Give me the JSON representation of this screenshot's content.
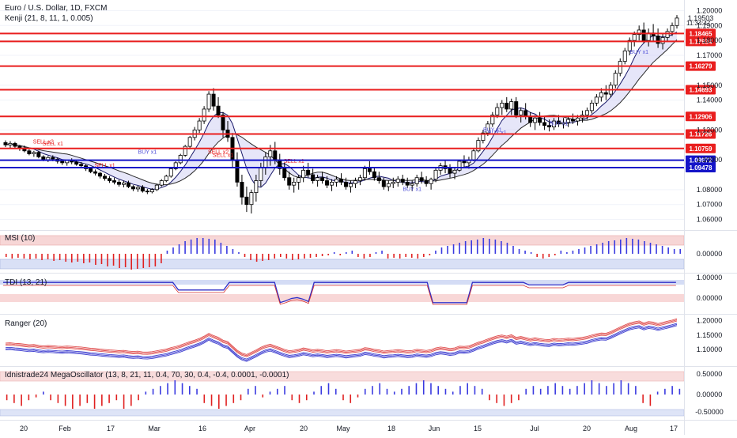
{
  "chart_data": [
    {
      "type": "candlestick",
      "title": "Euro / U.S. Dollar, 1D, FXCM",
      "subtitle": "Kenji (21, 8, 11, 1, 0.005)",
      "y_ticks": [
        "1.20000",
        "1.19000",
        "1.18000",
        "1.17000",
        "1.15000",
        "1.14000",
        "1.12000",
        "1.10000",
        "1.08000",
        "1.07000",
        "1.06000"
      ],
      "ylim": [
        1.055,
        1.205
      ],
      "last_price": "1.19503",
      "countdown": "11:34:47",
      "horizontal_levels": [
        {
          "value": "1.18465",
          "color": "#e91e1e"
        },
        {
          "value": "1.17934",
          "color": "#e91e1e"
        },
        {
          "value": "1.16279",
          "color": "#e91e1e"
        },
        {
          "value": "1.14693",
          "color": "#e91e1e"
        },
        {
          "value": "1.12906",
          "color": "#e91e1e"
        },
        {
          "value": "1.11726",
          "color": "#e91e1e"
        },
        {
          "value": "1.10759",
          "color": "#e91e1e"
        },
        {
          "value": "1.09972",
          "color": "#1414c8"
        },
        {
          "value": "1.09478",
          "color": "#1414c8"
        }
      ],
      "signal_labels": [
        {
          "text": "SELL x2",
          "color": "#e91e1e"
        },
        {
          "text": "SELL x1",
          "color": "#e91e1e"
        },
        {
          "text": "SELL x1",
          "color": "#e91e1e"
        },
        {
          "text": "BUY x1",
          "color": "#5050d8"
        },
        {
          "text": "SELL x2",
          "color": "#e91e1e"
        },
        {
          "text": "SELL x1",
          "color": "#e91e1e"
        },
        {
          "text": "SELL x1",
          "color": "#e91e1e"
        },
        {
          "text": "BUY x1",
          "color": "#5050d8"
        },
        {
          "text": "BUY x1",
          "color": "#5050d8"
        },
        {
          "text": "BUY x1",
          "color": "#5050d8"
        },
        {
          "text": "BUY x1",
          "color": "#5050d8"
        },
        {
          "text": "BUY x1",
          "color": "#5050d8"
        }
      ],
      "candles": [
        [
          1.1115,
          1.113,
          1.1085,
          1.11
        ],
        [
          1.11,
          1.1125,
          1.108,
          1.111
        ],
        [
          1.111,
          1.112,
          1.1075,
          1.109
        ],
        [
          1.109,
          1.11,
          1.106,
          1.108
        ],
        [
          1.108,
          1.1095,
          1.105,
          1.106
        ],
        [
          1.106,
          1.107,
          1.103,
          1.104
        ],
        [
          1.104,
          1.106,
          1.102,
          1.105
        ],
        [
          1.105,
          1.106,
          1.101,
          1.102
        ],
        [
          1.102,
          1.103,
          1.099,
          1.1
        ],
        [
          1.1,
          1.1025,
          1.0985,
          1.1015
        ],
        [
          1.1015,
          1.103,
          1.099,
          1.1005
        ],
        [
          1.1005,
          1.1015,
          1.0975,
          1.099
        ],
        [
          1.099,
          1.1,
          1.0965,
          1.098
        ],
        [
          1.098,
          1.1,
          1.096,
          1.0995
        ],
        [
          1.0995,
          1.101,
          1.097,
          1.0985
        ],
        [
          1.0985,
          1.1,
          1.096,
          1.097
        ],
        [
          1.097,
          1.0985,
          1.0945,
          1.096
        ],
        [
          1.096,
          1.097,
          1.0925,
          1.094
        ],
        [
          1.094,
          1.095,
          1.091,
          1.092
        ],
        [
          1.092,
          1.0935,
          1.0895,
          1.091
        ],
        [
          1.091,
          1.092,
          1.0875,
          1.089
        ],
        [
          1.089,
          1.0905,
          1.086,
          1.0875
        ],
        [
          1.0875,
          1.089,
          1.0845,
          1.086
        ],
        [
          1.086,
          1.088,
          1.0835,
          1.085
        ],
        [
          1.085,
          1.0865,
          1.082,
          1.0835
        ],
        [
          1.0835,
          1.086,
          1.0815,
          1.0845
        ],
        [
          1.0845,
          1.086,
          1.081,
          1.082
        ],
        [
          1.082,
          1.083,
          1.079,
          1.0805
        ],
        [
          1.0805,
          1.0825,
          1.0785,
          1.0815
        ],
        [
          1.0815,
          1.083,
          1.078,
          1.079
        ],
        [
          1.079,
          1.0805,
          1.077,
          1.0785
        ],
        [
          1.0785,
          1.081,
          1.0775,
          1.08
        ],
        [
          1.08,
          1.084,
          1.079,
          1.083
        ],
        [
          1.083,
          1.087,
          1.082,
          1.086
        ],
        [
          1.086,
          1.09,
          1.085,
          1.089
        ],
        [
          1.089,
          1.095,
          1.088,
          1.094
        ],
        [
          1.094,
          1.099,
          1.093,
          1.098
        ],
        [
          1.098,
          1.104,
          1.097,
          1.103
        ],
        [
          1.103,
          1.11,
          1.102,
          1.109
        ],
        [
          1.109,
          1.116,
          1.107,
          1.115
        ],
        [
          1.115,
          1.122,
          1.113,
          1.12
        ],
        [
          1.12,
          1.128,
          1.118,
          1.126
        ],
        [
          1.126,
          1.136,
          1.124,
          1.134
        ],
        [
          1.134,
          1.146,
          1.132,
          1.144
        ],
        [
          1.144,
          1.148,
          1.133,
          1.136
        ],
        [
          1.136,
          1.142,
          1.128,
          1.13
        ],
        [
          1.13,
          1.132,
          1.115,
          1.12
        ],
        [
          1.12,
          1.126,
          1.112,
          1.115
        ],
        [
          1.115,
          1.118,
          1.095,
          1.1
        ],
        [
          1.1,
          1.105,
          1.082,
          1.085
        ],
        [
          1.085,
          1.09,
          1.07,
          1.075
        ],
        [
          1.075,
          1.082,
          1.065,
          1.07
        ],
        [
          1.07,
          1.08,
          1.064,
          1.078
        ],
        [
          1.078,
          1.09,
          1.072,
          1.086
        ],
        [
          1.086,
          1.098,
          1.082,
          1.095
        ],
        [
          1.095,
          1.105,
          1.09,
          1.102
        ],
        [
          1.102,
          1.11,
          1.096,
          1.106
        ],
        [
          1.106,
          1.112,
          1.097,
          1.1
        ],
        [
          1.1,
          1.104,
          1.09,
          1.094
        ],
        [
          1.094,
          1.098,
          1.086,
          1.088
        ],
        [
          1.088,
          1.092,
          1.08,
          1.083
        ],
        [
          1.083,
          1.088,
          1.078,
          1.085
        ],
        [
          1.085,
          1.09,
          1.08,
          1.088
        ],
        [
          1.088,
          1.096,
          1.085,
          1.093
        ],
        [
          1.093,
          1.098,
          1.088,
          1.09
        ],
        [
          1.09,
          1.094,
          1.084,
          1.086
        ],
        [
          1.086,
          1.09,
          1.082,
          1.088
        ],
        [
          1.088,
          1.092,
          1.084,
          1.086
        ],
        [
          1.086,
          1.089,
          1.081,
          1.083
        ],
        [
          1.083,
          1.087,
          1.079,
          1.085
        ],
        [
          1.085,
          1.089,
          1.082,
          1.087
        ],
        [
          1.087,
          1.091,
          1.083,
          1.085
        ],
        [
          1.085,
          1.088,
          1.08,
          1.082
        ],
        [
          1.082,
          1.086,
          1.078,
          1.084
        ],
        [
          1.084,
          1.088,
          1.081,
          1.086
        ],
        [
          1.086,
          1.09,
          1.083,
          1.088
        ],
        [
          1.088,
          1.096,
          1.086,
          1.094
        ],
        [
          1.094,
          1.099,
          1.09,
          1.092
        ],
        [
          1.092,
          1.095,
          1.086,
          1.088
        ],
        [
          1.088,
          1.092,
          1.084,
          1.086
        ],
        [
          1.086,
          1.088,
          1.08,
          1.082
        ],
        [
          1.082,
          1.086,
          1.079,
          1.084
        ],
        [
          1.084,
          1.088,
          1.081,
          1.085
        ],
        [
          1.085,
          1.089,
          1.082,
          1.087
        ],
        [
          1.087,
          1.09,
          1.083,
          1.085
        ],
        [
          1.085,
          1.088,
          1.081,
          1.083
        ],
        [
          1.083,
          1.086,
          1.079,
          1.084
        ],
        [
          1.084,
          1.09,
          1.082,
          1.088
        ],
        [
          1.088,
          1.092,
          1.084,
          1.086
        ],
        [
          1.086,
          1.089,
          1.082,
          1.084
        ],
        [
          1.084,
          1.088,
          1.08,
          1.087
        ],
        [
          1.087,
          1.095,
          1.085,
          1.093
        ],
        [
          1.093,
          1.098,
          1.09,
          1.096
        ],
        [
          1.096,
          1.1,
          1.091,
          1.094
        ],
        [
          1.094,
          1.097,
          1.088,
          1.091
        ],
        [
          1.091,
          1.095,
          1.087,
          1.093
        ],
        [
          1.093,
          1.1,
          1.092,
          1.099
        ],
        [
          1.099,
          1.103,
          1.095,
          1.098
        ],
        [
          1.098,
          1.102,
          1.094,
          1.1
        ],
        [
          1.1,
          1.108,
          1.099,
          1.106
        ],
        [
          1.106,
          1.115,
          1.105,
          1.113
        ],
        [
          1.113,
          1.12,
          1.111,
          1.118
        ],
        [
          1.118,
          1.126,
          1.116,
          1.124
        ],
        [
          1.124,
          1.132,
          1.122,
          1.13
        ],
        [
          1.13,
          1.138,
          1.128,
          1.135
        ],
        [
          1.135,
          1.14,
          1.13,
          1.138
        ],
        [
          1.138,
          1.142,
          1.132,
          1.134
        ],
        [
          1.134,
          1.141,
          1.13,
          1.139
        ],
        [
          1.139,
          1.142,
          1.128,
          1.13
        ],
        [
          1.13,
          1.135,
          1.125,
          1.133
        ],
        [
          1.133,
          1.138,
          1.127,
          1.129
        ],
        [
          1.129,
          1.132,
          1.122,
          1.125
        ],
        [
          1.125,
          1.13,
          1.12,
          1.128
        ],
        [
          1.128,
          1.132,
          1.123,
          1.125
        ],
        [
          1.125,
          1.129,
          1.12,
          1.123
        ],
        [
          1.123,
          1.127,
          1.119,
          1.122
        ],
        [
          1.122,
          1.128,
          1.12,
          1.126
        ],
        [
          1.126,
          1.13,
          1.122,
          1.124
        ],
        [
          1.124,
          1.128,
          1.121,
          1.125
        ],
        [
          1.125,
          1.129,
          1.122,
          1.127
        ],
        [
          1.127,
          1.131,
          1.124,
          1.126
        ],
        [
          1.126,
          1.13,
          1.123,
          1.128
        ],
        [
          1.128,
          1.133,
          1.125,
          1.13
        ],
        [
          1.13,
          1.135,
          1.127,
          1.133
        ],
        [
          1.133,
          1.14,
          1.131,
          1.138
        ],
        [
          1.138,
          1.144,
          1.136,
          1.142
        ],
        [
          1.142,
          1.148,
          1.139,
          1.145
        ],
        [
          1.145,
          1.15,
          1.14,
          1.144
        ],
        [
          1.144,
          1.152,
          1.142,
          1.15
        ],
        [
          1.15,
          1.16,
          1.148,
          1.158
        ],
        [
          1.158,
          1.168,
          1.156,
          1.166
        ],
        [
          1.166,
          1.175,
          1.164,
          1.173
        ],
        [
          1.173,
          1.182,
          1.17,
          1.18
        ],
        [
          1.18,
          1.186,
          1.176,
          1.184
        ],
        [
          1.184,
          1.19,
          1.18,
          1.187
        ],
        [
          1.187,
          1.192,
          1.178,
          1.18
        ],
        [
          1.18,
          1.188,
          1.176,
          1.185
        ],
        [
          1.185,
          1.191,
          1.179,
          1.183
        ],
        [
          1.183,
          1.188,
          1.175,
          1.178
        ],
        [
          1.178,
          1.185,
          1.174,
          1.182
        ],
        [
          1.182,
          1.188,
          1.179,
          1.186
        ],
        [
          1.186,
          1.192,
          1.183,
          1.19
        ],
        [
          1.19,
          1.197,
          1.188,
          1.195
        ]
      ]
    },
    {
      "type": "histogram",
      "title": "MSI (10)",
      "y_ticks": [
        "0.00000"
      ],
      "values": [
        -0.2,
        -0.3,
        -0.25,
        -0.3,
        -0.35,
        -0.3,
        -0.4,
        -0.35,
        -0.45,
        -0.4,
        -0.5,
        -0.55,
        -0.5,
        -0.6,
        -0.55,
        -0.7,
        -0.65,
        -0.8,
        -0.75,
        -0.9,
        -0.85,
        -1.0,
        -0.95,
        -0.9,
        -0.85,
        -0.8,
        -0.6,
        0.2,
        0.4,
        0.6,
        0.8,
        0.9,
        1.0,
        1.0,
        0.95,
        0.9,
        0.7,
        0.5,
        0.3,
        0.1,
        -0.2,
        -0.4,
        -0.5,
        -0.45,
        -0.4,
        -0.3,
        -0.2,
        -0.3,
        -0.4,
        -0.35,
        -0.3,
        -0.25,
        -0.2,
        -0.15,
        -0.1,
        0.1,
        -0.1,
        0.1,
        0.2,
        -0.2,
        -0.3,
        -0.2,
        0.1,
        0.2,
        -0.3,
        -0.25,
        -0.3,
        -0.2,
        -0.25,
        -0.3,
        -0.2,
        -0.1,
        0.2,
        0.4,
        0.5,
        0.6,
        0.7,
        0.8,
        0.85,
        0.9,
        1.0,
        0.95,
        0.9,
        0.8,
        0.7,
        0.5,
        0.3,
        0.2,
        0.1,
        -0.2,
        -0.3,
        -0.2,
        -0.1,
        0.2,
        0.1,
        0.2,
        0.3,
        0.4,
        0.5,
        0.6,
        0.7,
        0.8,
        0.85,
        0.9,
        1.0,
        0.95,
        0.9,
        0.8,
        0.7,
        0.6,
        0.5,
        0.4,
        0.3,
        0.3
      ]
    },
    {
      "type": "line",
      "title": "TDI (13, 21)",
      "y_ticks": [
        "1.00000",
        "0.00000"
      ]
    },
    {
      "type": "line",
      "title": "Ranger (20)",
      "y_ticks": [
        "1.20000",
        "1.15000",
        "1.10000"
      ]
    },
    {
      "type": "histogram",
      "title": "Idnistrade24 MegaOscillator (13, 8, 21, 11, 0.4, 70, 30, 0.4, -0.4, 0.0001, -0.0001)",
      "y_ticks": [
        "0.50000",
        "0.00000",
        "-0.50000"
      ],
      "values": [
        -0.2,
        -0.3,
        -0.4,
        -0.2,
        -0.1,
        0.1,
        -0.2,
        -0.3,
        -0.4,
        -0.5,
        -0.4,
        -0.3,
        -0.5,
        -0.4,
        -0.3,
        -0.2,
        -0.5,
        -0.4,
        -0.2,
        0.1,
        0.2,
        0.3,
        0.4,
        0.5,
        0.4,
        0.3,
        0.2,
        -0.3,
        -0.4,
        -0.5,
        -0.4,
        -0.3,
        -0.2,
        0.2,
        0.3,
        -0.1,
        0.1,
        0.2,
        0.3,
        -0.2,
        -0.3,
        -0.2,
        0.1,
        0.3,
        0.4,
        0.2,
        -0.2,
        -0.3,
        -0.1,
        0.2,
        0.3,
        0.4,
        0.2,
        0.1,
        0.2,
        0.3,
        0.4,
        0.5,
        0.4,
        0.3,
        0.2,
        0.1,
        0.3,
        0.4,
        0.3,
        0.2,
        -0.2,
        -0.3,
        -0.4,
        -0.3,
        -0.2,
        0.2,
        0.3,
        0.2,
        0.3,
        0.4,
        0.3,
        0.2,
        0.3,
        0.4,
        0.5,
        0.4,
        0.3,
        0.4,
        0.5,
        0.4,
        0.3,
        -0.3,
        -0.4,
        0.1,
        0.2,
        0.3,
        0.2
      ]
    }
  ],
  "x_axis": {
    "ticks": [
      "20",
      "Feb",
      "17",
      "Mar",
      "16",
      "Apr",
      "20",
      "May",
      "18",
      "Jun",
      "15",
      "Jul",
      "20",
      "Aug",
      "17"
    ]
  }
}
